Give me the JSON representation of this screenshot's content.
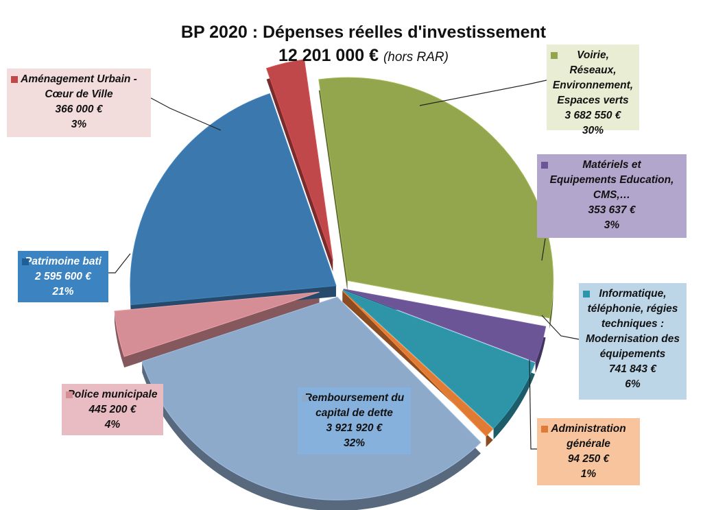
{
  "chart_data": {
    "type": "pie",
    "title": "BP 2020 : Dépenses réelles d'investissement",
    "subtitle": "12 201 000 €",
    "subtitle_note": "(hors RAR)",
    "slices": [
      {
        "key": "voirie",
        "lines": [
          "Voirie, Réseaux,",
          "Environnement,",
          "Espaces verts"
        ],
        "value_text": "3 682 550 €",
        "percent_text": "30%",
        "value": 3682550,
        "color": "#93a64e",
        "label_bg": "#e8edd4",
        "label_text": "#111111"
      },
      {
        "key": "materiels",
        "lines": [
          "Matériels et",
          "Equipements Education,",
          "CMS,…"
        ],
        "value_text": "353 637 €",
        "percent_text": "3%",
        "value": 353637,
        "color": "#6b5596",
        "label_bg": "#b3a6cd",
        "label_text": "#111111"
      },
      {
        "key": "informatique",
        "lines": [
          "Informatique,",
          "téléphonie, régies",
          "techniques :",
          "Modernisation des",
          "équipements"
        ],
        "value_text": "741 843 €",
        "percent_text": "6%",
        "value": 741843,
        "color": "#2e95a8",
        "label_bg": "#bcd6e8",
        "label_text": "#111111"
      },
      {
        "key": "administration",
        "lines": [
          "Administration",
          "générale"
        ],
        "value_text": "94 250 €",
        "percent_text": "1%",
        "value": 94250,
        "color": "#e07b36",
        "label_bg": "#f7c49d",
        "label_text": "#111111"
      },
      {
        "key": "remboursement",
        "lines": [
          "Remboursement du",
          "capital de dette"
        ],
        "value_text": "3 921 920 €",
        "percent_text": "32%",
        "value": 3921920,
        "color": "#8eaacb",
        "label_bg": "#86b1dc",
        "label_text": "#111111"
      },
      {
        "key": "police",
        "lines": [
          "Police municipale"
        ],
        "value_text": "445 200 €",
        "percent_text": "4%",
        "value": 445200,
        "color": "#d58e95",
        "label_bg": "#e9bcc3",
        "label_text": "#111111"
      },
      {
        "key": "patrimoine",
        "lines": [
          "Patrimoine bati"
        ],
        "value_text": "2 595 600 €",
        "percent_text": "21%",
        "value": 2595600,
        "color": "#3b78ad",
        "label_bg": "#3c83c2",
        "label_text": "#ffffff"
      },
      {
        "key": "amenagement",
        "lines": [
          "Aménagement Urbain -",
          "Cœur de Ville"
        ],
        "value_text": "366 000 €",
        "percent_text": "3%",
        "value": 366000,
        "color": "#c0484a",
        "label_bg": "#f2dcdc",
        "label_text": "#111111"
      }
    ]
  }
}
